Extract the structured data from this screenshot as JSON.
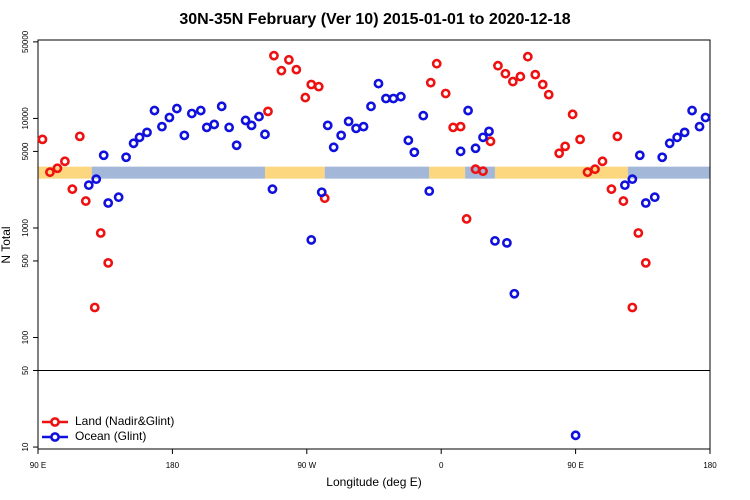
{
  "chart_data": {
    "type": "scatter",
    "title": "30N-35N February (Ver 10)   2015-01-01 to 2020-12-18",
    "x_label": "Longitude (deg E)",
    "y_label": "N Total",
    "log_y": true,
    "xlim": [
      90,
      540
    ],
    "xticks": [
      {
        "value": 90,
        "label": "90 E"
      },
      180,
      {
        "value": 270,
        "label": "90 W"
      },
      {
        "value": 360,
        "label": "0"
      },
      {
        "value": 450,
        "label": "90 E"
      },
      {
        "value": 540,
        "label": "180"
      }
    ],
    "ylim": [
      9.6,
      52000
    ],
    "yticks": [
      10,
      50,
      100,
      500,
      1000,
      5000,
      10000,
      50000
    ],
    "hline": 50,
    "legend": "bottom-left",
    "band": {
      "value": 3200,
      "segments": [
        {
          "start": 90,
          "end": 126,
          "color": "#fcd77f"
        },
        {
          "start": 126,
          "end": 242,
          "color": "#a3b8d8"
        },
        {
          "start": 242,
          "end": 282,
          "color": "#fcd77f"
        },
        {
          "start": 282,
          "end": 352,
          "color": "#a3b8d8"
        },
        {
          "start": 352,
          "end": 376,
          "color": "#fcd77f"
        },
        {
          "start": 376,
          "end": 396,
          "color": "#a3b8d8"
        },
        {
          "start": 396,
          "end": 485,
          "color": "#fcd77f"
        },
        {
          "start": 485,
          "end": 540,
          "color": "#a3b8d8"
        }
      ]
    },
    "series": [
      {
        "name": "Land (Nadir&Glint)",
        "color": "#ee1111",
        "x": [
          93,
          98,
          103,
          108,
          113,
          118,
          122,
          128,
          132,
          137,
          244,
          248,
          253,
          258,
          263,
          269,
          273,
          278,
          282,
          353,
          357,
          363,
          368,
          373,
          377,
          383,
          388,
          393,
          398,
          403,
          408,
          413,
          418,
          423,
          428,
          432,
          439,
          443,
          448,
          453,
          458,
          463,
          468,
          474,
          478,
          482,
          488,
          492,
          497
        ],
        "values": [
          6440,
          3230,
          3510,
          4060,
          2260,
          6860,
          1760,
          188,
          900,
          480,
          11600,
          37400,
          27300,
          34300,
          27900,
          15500,
          20400,
          19500,
          1870,
          21200,
          31600,
          16900,
          8280,
          8420,
          1210,
          3440,
          3300,
          6180,
          30300,
          25600,
          21700,
          24100,
          36600,
          25100,
          20400,
          16500,
          4810,
          5560,
          10900,
          6440,
          3230,
          3440,
          4060,
          2260,
          6860,
          1760,
          188,
          900,
          480
        ]
      },
      {
        "name": "Ocean (Glint)",
        "color": "#1111dd",
        "x": [
          124,
          129,
          134,
          137,
          144,
          149,
          154,
          158,
          163,
          168,
          173,
          178,
          183,
          188,
          193,
          199,
          203,
          208,
          213,
          218,
          223,
          229,
          233,
          238,
          242,
          247,
          273,
          280,
          284,
          288,
          293,
          298,
          303,
          308,
          313,
          318,
          323,
          328,
          333,
          338,
          342,
          348,
          352,
          373,
          378,
          383,
          388,
          392,
          396,
          404,
          409,
          450,
          483,
          488,
          493,
          497,
          503,
          508,
          513,
          518,
          523,
          528,
          533,
          537
        ],
        "values": [
          2460,
          2790,
          4610,
          1690,
          1910,
          4420,
          5930,
          6720,
          7460,
          11800,
          8420,
          10200,
          12300,
          7000,
          11100,
          11800,
          8280,
          8810,
          12900,
          8280,
          5690,
          9590,
          8640,
          10400,
          7160,
          2260,
          778,
          2120,
          8640,
          5450,
          7000,
          9400,
          8110,
          8420,
          12900,
          20800,
          15200,
          15200,
          15800,
          6310,
          4910,
          10600,
          2170,
          5010,
          11800,
          5340,
          6720,
          7620,
          762,
          731,
          251,
          12.8,
          2460,
          2790,
          4610,
          1690,
          1910,
          4420,
          5930,
          6720,
          7460,
          11800,
          8420,
          10200
        ]
      }
    ]
  }
}
